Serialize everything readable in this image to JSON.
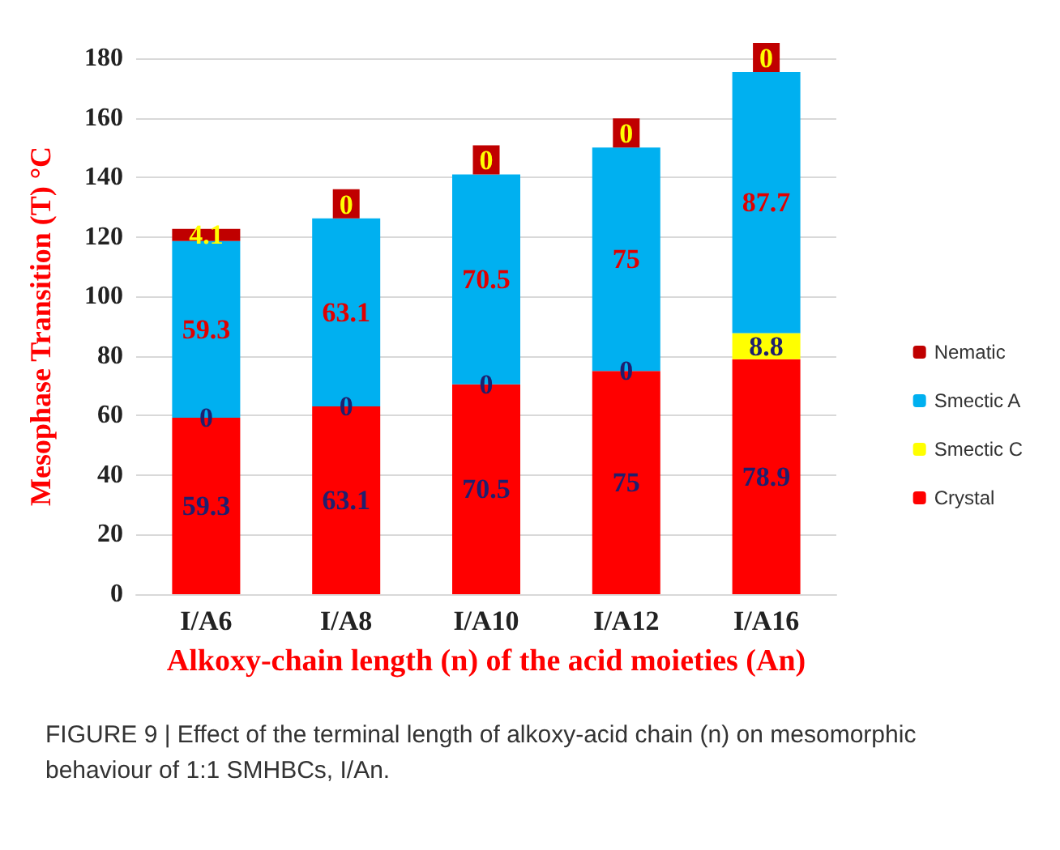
{
  "chart_data": {
    "type": "bar",
    "stacked": true,
    "xlabel": "Alkoxy-chain length (n) of the acid moieties (An)",
    "ylabel": "Mesophase Transition (T) °C",
    "categories": [
      "I/A6",
      "I/A8",
      "I/A10",
      "I/A12",
      "I/A16"
    ],
    "series": [
      {
        "name": "Crystal",
        "color": "#ff0000",
        "values": [
          59.3,
          63.1,
          70.5,
          75,
          78.9
        ],
        "value_labels": [
          "59.3",
          "63.1",
          "70.5",
          "75",
          "78.9"
        ]
      },
      {
        "name": "Smectic C",
        "color": "#ffff00",
        "values": [
          0,
          0,
          0,
          0,
          8.8
        ],
        "value_labels": [
          null,
          null,
          null,
          null,
          "8.8"
        ]
      },
      {
        "name": "Smectic A",
        "color": "#00b0f0",
        "values": [
          59.3,
          63.1,
          70.5,
          75,
          87.7
        ],
        "value_labels": [
          "59.3",
          "63.1",
          "70.5",
          "75",
          "87.7"
        ]
      },
      {
        "name": "Nematic",
        "color": "#c00000",
        "values": [
          4.1,
          0,
          0,
          0,
          0
        ],
        "value_labels": [
          "4.1",
          null,
          null,
          null,
          null
        ]
      }
    ],
    "ylim": [
      0,
      180
    ],
    "yticks": [
      0,
      20,
      40,
      60,
      80,
      100,
      120,
      140,
      160,
      180
    ],
    "grid": "y",
    "legend": "right",
    "annotations": [
      {
        "text": "0",
        "x": "I/A6",
        "y": 59.3
      },
      {
        "text": "0",
        "x": "I/A8",
        "y": 63.1
      },
      {
        "text": "0",
        "x": "I/A10",
        "y": 70.5
      },
      {
        "text": "0",
        "x": "I/A12",
        "y": 75
      },
      {
        "text": "0",
        "x": "I/A8",
        "y": 126.2
      },
      {
        "text": "0",
        "x": "I/A10",
        "y": 141
      },
      {
        "text": "0",
        "x": "I/A12",
        "y": 150
      },
      {
        "text": "0",
        "x": "I/A16",
        "y": 175.4
      },
      "FIGURE 9 | Effect of the terminal length of alkoxy-acid chain (n) on mesomorphic behaviour of 1:1 SMHBCs, I/An."
    ]
  }
}
